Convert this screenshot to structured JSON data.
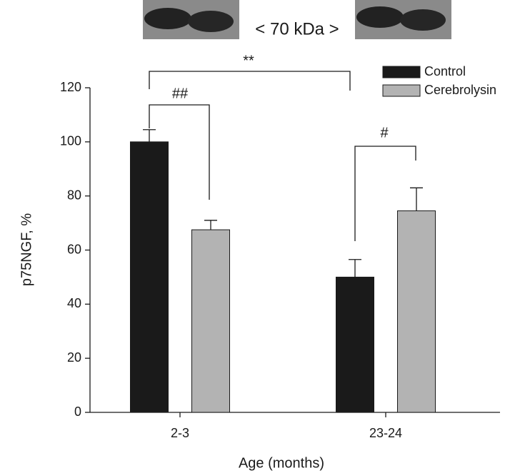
{
  "chart_data": {
    "type": "bar",
    "ylabel": "p75NGF, %",
    "xlabel": "Age (months)",
    "categories": [
      "2-3",
      "23-24"
    ],
    "series": [
      {
        "name": "Control",
        "color": "#1a1a1a",
        "values": [
          100,
          50
        ],
        "errors": [
          4.5,
          6.5
        ]
      },
      {
        "name": "Cerebrolysin",
        "color": "#b3b3b3",
        "values": [
          67.5,
          74.5
        ],
        "errors": [
          3.5,
          8.5
        ]
      }
    ],
    "ylim": [
      0,
      120
    ],
    "yticks": [
      0,
      20,
      40,
      60,
      80,
      100,
      120
    ],
    "legend": "top-right",
    "annotations": [
      "< 70 kDa >",
      "**",
      "##",
      "#"
    ]
  }
}
